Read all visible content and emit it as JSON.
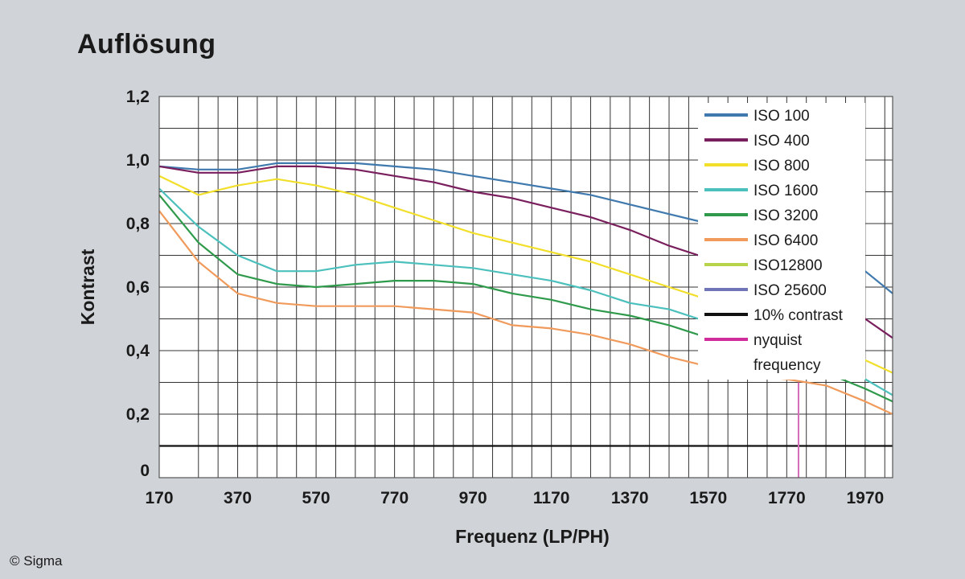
{
  "title": "Auflösung",
  "credit": "© Sigma",
  "chart_data": {
    "type": "line",
    "xlabel": "Frequenz (LP/PH)",
    "ylabel": "Kontrast",
    "xlim": [
      170,
      2040
    ],
    "ylim": [
      0,
      1.2
    ],
    "x_ticks": [
      "170",
      "370",
      "570",
      "770",
      "970",
      "1170",
      "1370",
      "1570",
      "1770",
      "1970"
    ],
    "y_ticks": [
      "0",
      "0,2",
      "0,4",
      "0,6",
      "0,8",
      "1,0",
      "1,2"
    ],
    "grid": true,
    "legend_position": "top-right",
    "x": [
      170,
      270,
      370,
      470,
      570,
      670,
      770,
      870,
      970,
      1070,
      1170,
      1270,
      1370,
      1470,
      1570,
      1670,
      1770,
      1870,
      1970,
      2040
    ],
    "series": [
      {
        "name": "ISO 100",
        "color": "#3f79ad",
        "values": [
          0.98,
          0.97,
          0.97,
          0.99,
          0.99,
          0.99,
          0.98,
          0.97,
          0.95,
          0.93,
          0.91,
          0.89,
          0.86,
          0.83,
          0.8,
          0.77,
          0.74,
          0.7,
          0.65,
          0.58
        ]
      },
      {
        "name": "ISO 400",
        "color": "#7a1f5e",
        "values": [
          0.98,
          0.96,
          0.96,
          0.98,
          0.98,
          0.97,
          0.95,
          0.93,
          0.9,
          0.88,
          0.85,
          0.82,
          0.78,
          0.73,
          0.69,
          0.65,
          0.6,
          0.55,
          0.5,
          0.44
        ]
      },
      {
        "name": "ISO 800",
        "color": "#f2df2a",
        "values": [
          0.95,
          0.89,
          0.92,
          0.94,
          0.92,
          0.89,
          0.85,
          0.81,
          0.77,
          0.74,
          0.71,
          0.68,
          0.64,
          0.6,
          0.56,
          0.52,
          0.47,
          0.42,
          0.37,
          0.33
        ]
      },
      {
        "name": "ISO 1600",
        "color": "#4cc0bc",
        "values": [
          0.91,
          0.79,
          0.7,
          0.65,
          0.65,
          0.67,
          0.68,
          0.67,
          0.66,
          0.64,
          0.62,
          0.59,
          0.55,
          0.53,
          0.49,
          0.45,
          0.41,
          0.36,
          0.31,
          0.26
        ]
      },
      {
        "name": "ISO 3200",
        "color": "#2f9a4b",
        "values": [
          0.89,
          0.74,
          0.64,
          0.61,
          0.6,
          0.61,
          0.62,
          0.62,
          0.61,
          0.58,
          0.56,
          0.53,
          0.51,
          0.48,
          0.44,
          0.4,
          0.37,
          0.33,
          0.28,
          0.24
        ]
      },
      {
        "name": "ISO 6400",
        "color": "#f09a5b",
        "values": [
          0.84,
          0.68,
          0.58,
          0.55,
          0.54,
          0.54,
          0.54,
          0.53,
          0.52,
          0.48,
          0.47,
          0.45,
          0.42,
          0.38,
          0.35,
          0.32,
          0.31,
          0.29,
          0.24,
          0.2
        ]
      }
    ],
    "legend": [
      {
        "label": "ISO 100",
        "color": "#3f79ad"
      },
      {
        "label": "ISO 400",
        "color": "#7a1f5e"
      },
      {
        "label": "ISO 800",
        "color": "#f2df2a"
      },
      {
        "label": "ISO 1600",
        "color": "#4cc0bc"
      },
      {
        "label": "ISO 3200",
        "color": "#2f9a4b"
      },
      {
        "label": "ISO 6400",
        "color": "#f09a5b"
      },
      {
        "label": "ISO12800",
        "color": "#b6d34a"
      },
      {
        "label": "ISO 25600",
        "color": "#6f75b6"
      },
      {
        "label": "10% contrast",
        "color": "#111111"
      },
      {
        "label": "nyquist frequency",
        "color": "#d12c9b"
      }
    ],
    "reference_lines": {
      "contrast_10_percent": {
        "y": 0.1,
        "color": "#111111"
      },
      "nyquist": {
        "x": 1800,
        "y_max": 0.3,
        "color": "#d46bb8"
      }
    }
  }
}
